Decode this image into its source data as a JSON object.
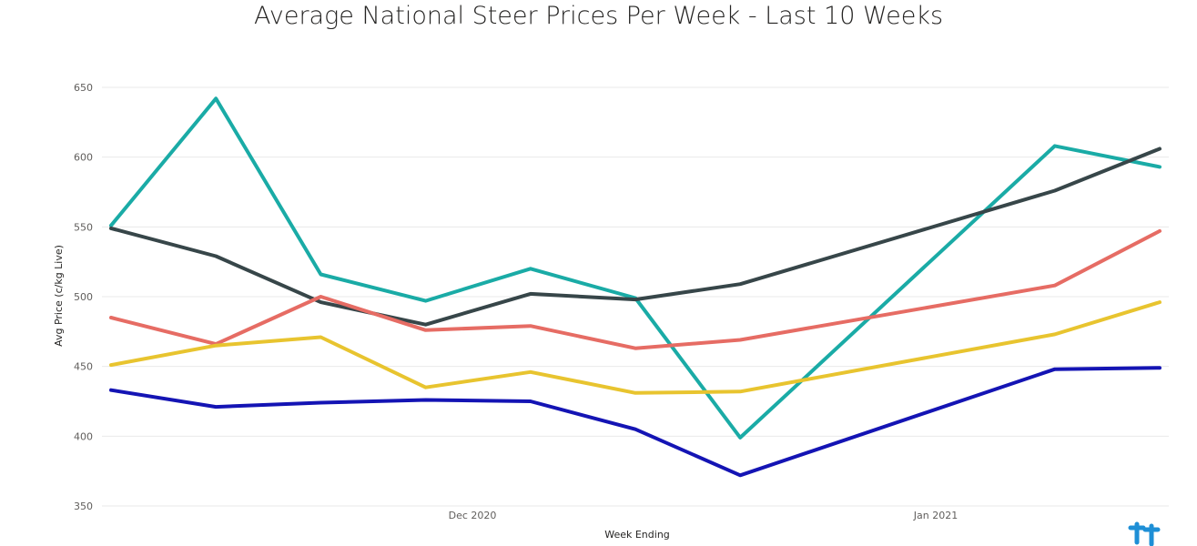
{
  "chart_data": {
    "type": "line",
    "title": "Average National Steer Prices Per Week - Last 10 Weeks",
    "xlabel": "Week Ending",
    "ylabel": "Avg Price (c/kg Live)",
    "x_tick_labels": [
      "Dec 2020",
      "Jan 2021"
    ],
    "ylim": [
      350,
      650
    ],
    "y_ticks": [
      350,
      400,
      450,
      500,
      550,
      600,
      650
    ],
    "grid": true,
    "legend": "none",
    "x_points": 11,
    "series": [
      {
        "color": "#1aaba6",
        "values": [
          551,
          642,
          516,
          497,
          520,
          499,
          399,
          null,
          null,
          608,
          593
        ]
      },
      {
        "color": "#374649",
        "values": [
          549,
          529,
          496,
          480,
          502,
          498,
          509,
          null,
          null,
          576,
          606
        ]
      },
      {
        "color": "#e66c64",
        "values": [
          485,
          466,
          500,
          476,
          479,
          463,
          469,
          null,
          null,
          508,
          547
        ]
      },
      {
        "color": "#e8c42f",
        "values": [
          451,
          465,
          471,
          435,
          446,
          431,
          432,
          null,
          null,
          473,
          496
        ]
      },
      {
        "color": "#1414b4",
        "values": [
          433,
          421,
          424,
          426,
          425,
          405,
          372,
          null,
          null,
          448,
          449
        ]
      }
    ]
  },
  "logo": {
    "name": "brand-logo-icon",
    "color": "#1e8fd6"
  }
}
